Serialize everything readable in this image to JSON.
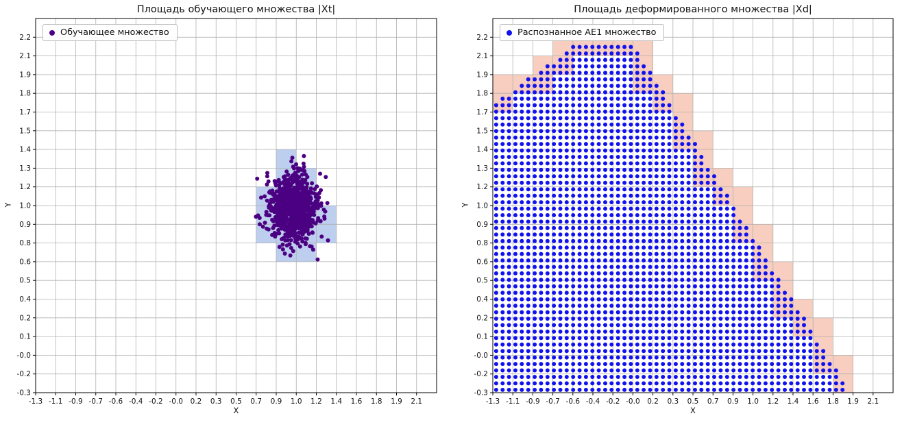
{
  "figure": {
    "background": "#ffffff",
    "grid_color": "#b0b0b0",
    "spine_color": "#000000",
    "text_color": "#111111"
  },
  "chart_data": [
    {
      "type": "scatter",
      "title": "Площадь обучающего множества |Xt|",
      "xlabel": "X",
      "ylabel": "Y",
      "xlim": [
        -1.3,
        2.2578
      ],
      "ylim": [
        -0.3,
        2.3316
      ],
      "grid": true,
      "legend": {
        "label": "Обучающее множество",
        "position": "upper left"
      },
      "x_tick_labels": [
        "-1.3",
        "-1.1",
        "-0.9",
        "-0.7",
        "-0.6",
        "-0.4",
        "-0.2",
        "-0.0",
        "0.2",
        "0.3",
        "0.5",
        "0.7",
        "0.9",
        "1.0",
        "1.2",
        "1.4",
        "1.6",
        "1.8",
        "1.9",
        "2.1"
      ],
      "y_tick_labels": [
        "-0.3",
        "-0.2",
        "-0.0",
        "0.1",
        "0.2",
        "0.4",
        "0.5",
        "0.6",
        "0.8",
        "0.9",
        "1.0",
        "1.2",
        "1.3",
        "1.4",
        "1.5",
        "1.7",
        "1.8",
        "1.9",
        "2.1",
        "2.2"
      ],
      "series": [
        {
          "name": "Обучающее множество",
          "type": "gaussian_cluster",
          "color": "#4b0082",
          "marker_radius": 3,
          "center": [
            0.99,
            1.0
          ],
          "std": [
            0.105,
            0.12
          ],
          "n": 900,
          "seed": 12345
        }
      ],
      "highlight_cells": {
        "color": "#7b9ede",
        "opacity": 0.5,
        "cells": [
          [
            11,
            8
          ],
          [
            11,
            9
          ],
          [
            11,
            10
          ],
          [
            12,
            7
          ],
          [
            12,
            8
          ],
          [
            12,
            9
          ],
          [
            12,
            10
          ],
          [
            12,
            11
          ],
          [
            12,
            12
          ],
          [
            13,
            7
          ],
          [
            13,
            8
          ],
          [
            13,
            9
          ],
          [
            13,
            10
          ],
          [
            13,
            11
          ],
          [
            14,
            8
          ],
          [
            14,
            9
          ]
        ]
      }
    },
    {
      "type": "scatter",
      "title": "Площадь деформированного множества |Xd|",
      "xlabel": "X",
      "ylabel": "Y",
      "xlim": [
        -1.3,
        2.2578
      ],
      "ylim": [
        -0.3,
        2.3316
      ],
      "grid": true,
      "legend": {
        "label": "Распознанное АЕ1 множество",
        "position": "upper left"
      },
      "x_tick_labels": [
        "-1.3",
        "-1.1",
        "-0.9",
        "-0.7",
        "-0.6",
        "-0.4",
        "-0.2",
        "-0.0",
        "0.2",
        "0.3",
        "0.5",
        "0.7",
        "0.9",
        "1.0",
        "1.2",
        "1.4",
        "1.6",
        "1.8",
        "1.9",
        "2.1"
      ],
      "y_tick_labels": [
        "-0.3",
        "-0.2",
        "-0.0",
        "0.1",
        "0.2",
        "0.4",
        "0.5",
        "0.6",
        "0.8",
        "0.9",
        "1.0",
        "1.2",
        "1.3",
        "1.4",
        "1.5",
        "1.7",
        "1.8",
        "1.9",
        "2.1",
        "2.2"
      ],
      "series": [
        {
          "name": "Распознанное АЕ1 множество",
          "type": "grid_region",
          "color": "#1212ee",
          "marker_radius": 3,
          "dx": 0.057,
          "dy": 0.0455,
          "region": {
            "x_min": -1.3,
            "y_min": -0.3,
            "upper_boundary": [
              [
                [
                  -1.3,
                  1.72
                ],
                [
                  -0.58,
                  2.15
                ]
              ],
              [
                [
                  -0.58,
                  2.15
                ],
                [
                  -0.05,
                  2.15
                ]
              ],
              [
                [
                  -0.05,
                  2.15
                ],
                [
                  1.88,
                  -0.3
                ]
              ]
            ]
          }
        }
      ],
      "highlight_cells": {
        "color": "#ee9270",
        "opacity": 0.45,
        "cells": [
          [
            0,
            15
          ],
          [
            0,
            16
          ],
          [
            1,
            16
          ],
          [
            2,
            16
          ],
          [
            2,
            17
          ],
          [
            3,
            17
          ],
          [
            3,
            18
          ],
          [
            4,
            18
          ],
          [
            5,
            18
          ],
          [
            6,
            18
          ],
          [
            7,
            16
          ],
          [
            7,
            17
          ],
          [
            7,
            18
          ],
          [
            8,
            15
          ],
          [
            8,
            16
          ],
          [
            9,
            13
          ],
          [
            9,
            14
          ],
          [
            9,
            15
          ],
          [
            10,
            11
          ],
          [
            10,
            12
          ],
          [
            10,
            13
          ],
          [
            11,
            10
          ],
          [
            11,
            11
          ],
          [
            12,
            8
          ],
          [
            12,
            9
          ],
          [
            12,
            10
          ],
          [
            13,
            6
          ],
          [
            13,
            7
          ],
          [
            13,
            8
          ],
          [
            14,
            4
          ],
          [
            14,
            5
          ],
          [
            14,
            6
          ],
          [
            15,
            3
          ],
          [
            15,
            4
          ],
          [
            16,
            1
          ],
          [
            16,
            2
          ],
          [
            16,
            3
          ],
          [
            17,
            0
          ],
          [
            17,
            1
          ]
        ]
      }
    }
  ]
}
